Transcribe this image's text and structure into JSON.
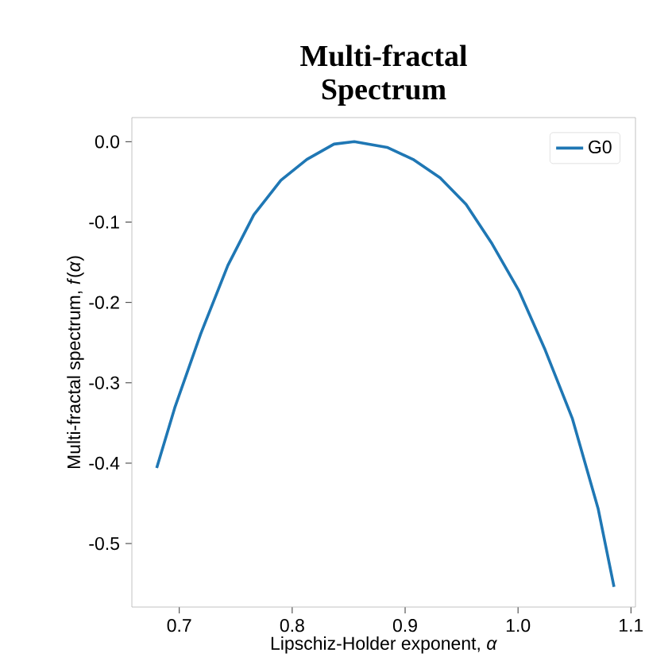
{
  "chart_data": {
    "type": "line",
    "title": "Multi-fractal Spectrum",
    "xlabel": "Lipschiz-Holder exponent, *α*",
    "ylabel": "Multi-fractal spectrum, *f*(*α*)",
    "xlim": [
      0.658,
      1.104
    ],
    "ylim": [
      -0.579,
      0.03
    ],
    "xticks": [
      0.7,
      0.8,
      0.9,
      {
        "value": 1.0,
        "label": "1.0"
      },
      1.1
    ],
    "yticks": [
      {
        "value": 0.0,
        "label": "0.0"
      },
      -0.1,
      -0.2,
      -0.3,
      -0.4,
      -0.5
    ],
    "legend": "top right",
    "grid": false,
    "series": [
      {
        "name": "G0",
        "color": "#1f77b4",
        "x": [
          0.68,
          0.696,
          0.719,
          0.743,
          0.766,
          0.79,
          0.813,
          0.837,
          0.855,
          0.884,
          0.907,
          0.931,
          0.954,
          0.977,
          1.001,
          1.024,
          1.048,
          1.071,
          1.085
        ],
        "values": [
          -0.406,
          -0.331,
          -0.239,
          -0.154,
          -0.091,
          -0.048,
          -0.022,
          -0.003,
          0.0,
          -0.007,
          -0.022,
          -0.045,
          -0.078,
          -0.127,
          -0.186,
          -0.259,
          -0.344,
          -0.457,
          -0.554
        ]
      }
    ]
  }
}
